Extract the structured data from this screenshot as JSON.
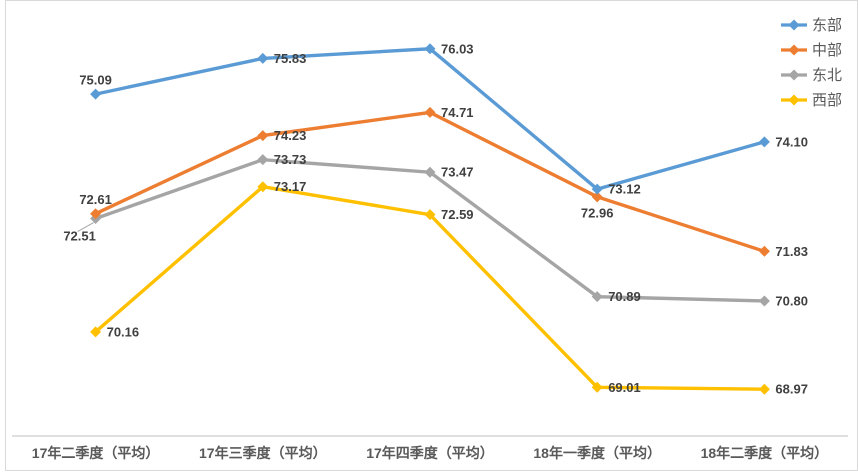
{
  "chart_data": {
    "type": "line",
    "title": "",
    "categories": [
      "17年二季度（平均）",
      "17年三季度（平均）",
      "17年四季度（平均）",
      "18年一季度（平均）",
      "18年二季度（平均）"
    ],
    "series": [
      {
        "id": "east",
        "name": "东部",
        "color": "#5B9BD5",
        "values": [
          75.09,
          75.83,
          76.03,
          73.12,
          74.1
        ],
        "label_pos": [
          "above",
          "right",
          "right",
          "right",
          "right"
        ]
      },
      {
        "id": "central",
        "name": "中部",
        "color": "#ED7D31",
        "values": [
          72.61,
          74.23,
          74.71,
          72.96,
          71.83
        ],
        "label_pos": [
          "above",
          "right",
          "right",
          "below",
          "right"
        ]
      },
      {
        "id": "northeast",
        "name": "东北",
        "color": "#A5A5A5",
        "values": [
          72.51,
          73.73,
          73.47,
          70.89,
          70.8
        ],
        "label_pos": [
          "below-left-leader",
          "right",
          "right",
          "right",
          "right"
        ]
      },
      {
        "id": "west",
        "name": "西部",
        "color": "#FFC000",
        "values": [
          70.16,
          73.17,
          72.59,
          69.01,
          68.97
        ],
        "label_pos": [
          "right",
          "right",
          "right",
          "right",
          "right"
        ]
      }
    ],
    "ylim": [
      68,
      77
    ],
    "grid": false,
    "legend_position": "top-right",
    "marker": "diamond",
    "data_labels_shown": true,
    "label_decimals": 2,
    "colors": {
      "data_label": "#404040",
      "axis_label": "#595959",
      "legend_label": "#595959",
      "axis_line": "#BFBFBF",
      "leader_line": "#A5A5A5",
      "chart_border": "#D9D9D9"
    }
  }
}
